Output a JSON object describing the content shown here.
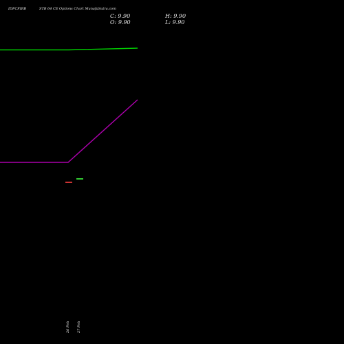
{
  "header": {
    "symbol": "IDFCFIRB",
    "description": "STB 64 CE Options Chart MunafaSutra.com",
    "close_label": "C:",
    "close_value": "9.90",
    "high_label": "H:",
    "high_value": "9.90",
    "open_label": "O:",
    "open_value": "9.90",
    "low_label": "L:",
    "low_value": "9.90"
  },
  "chart_data": {
    "type": "line",
    "background": "#000000",
    "x_ticks": [
      "26 Feb",
      "27 Feb"
    ],
    "series": [
      {
        "color": "#00cc00",
        "values_by_day": {
          "26 Feb": 9.9,
          "27 Feb": 9.9
        }
      },
      {
        "color": "#aa00aa",
        "values_by_day": {
          "26 Feb": 9.9,
          "27 Feb": 9.9
        }
      }
    ],
    "candles": [
      {
        "x": "26 Feb",
        "open": 9.9,
        "high": 9.9,
        "low": 9.9,
        "close": 9.9,
        "color": "#cc3333"
      },
      {
        "x": "27 Feb",
        "open": 9.9,
        "high": 9.9,
        "low": 9.9,
        "close": 9.9,
        "color": "#33cc33"
      }
    ],
    "grid": false
  }
}
